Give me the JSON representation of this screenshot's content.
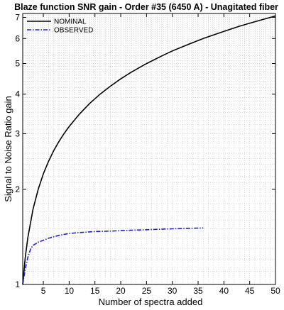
{
  "chart_data": {
    "type": "line",
    "title": "Blaze function SNR gain - Order #35 (6450 A) - Unagitated fiber",
    "xlabel": "Number of spectra added",
    "ylabel": "Signal to Noise Ratio gain",
    "xlim": [
      1,
      50
    ],
    "ylim": [
      1,
      7.2
    ],
    "yscale": "log",
    "grid": true,
    "legend_position": "top-left",
    "x_ticks": [
      5,
      10,
      15,
      20,
      25,
      30,
      35,
      40,
      45,
      50
    ],
    "y_ticks": [
      1,
      2,
      3,
      4,
      5,
      6,
      7
    ],
    "series": [
      {
        "name": "NOMINAL",
        "color": "#000000",
        "style": "solid",
        "x": [
          1,
          1.5,
          2,
          3,
          4,
          5,
          6,
          7,
          8,
          9,
          10,
          12,
          14,
          16,
          18,
          20,
          22,
          25,
          28,
          30,
          33,
          36,
          40,
          43,
          46,
          50
        ],
        "y": [
          1.0,
          1.22,
          1.41,
          1.73,
          2.0,
          2.24,
          2.45,
          2.65,
          2.83,
          3.0,
          3.16,
          3.46,
          3.74,
          4.0,
          4.24,
          4.47,
          4.69,
          5.0,
          5.29,
          5.48,
          5.74,
          6.0,
          6.32,
          6.56,
          6.78,
          7.07
        ]
      },
      {
        "name": "OBSERVED",
        "color": "#2020d0",
        "style": "dashdot",
        "x": [
          1,
          1.5,
          2,
          2.5,
          3,
          4,
          5,
          6,
          8,
          10,
          12,
          15,
          18,
          20,
          25,
          30,
          33,
          36
        ],
        "y": [
          1.0,
          1.12,
          1.22,
          1.29,
          1.33,
          1.36,
          1.38,
          1.4,
          1.43,
          1.45,
          1.46,
          1.47,
          1.475,
          1.48,
          1.49,
          1.5,
          1.505,
          1.51
        ]
      }
    ]
  }
}
